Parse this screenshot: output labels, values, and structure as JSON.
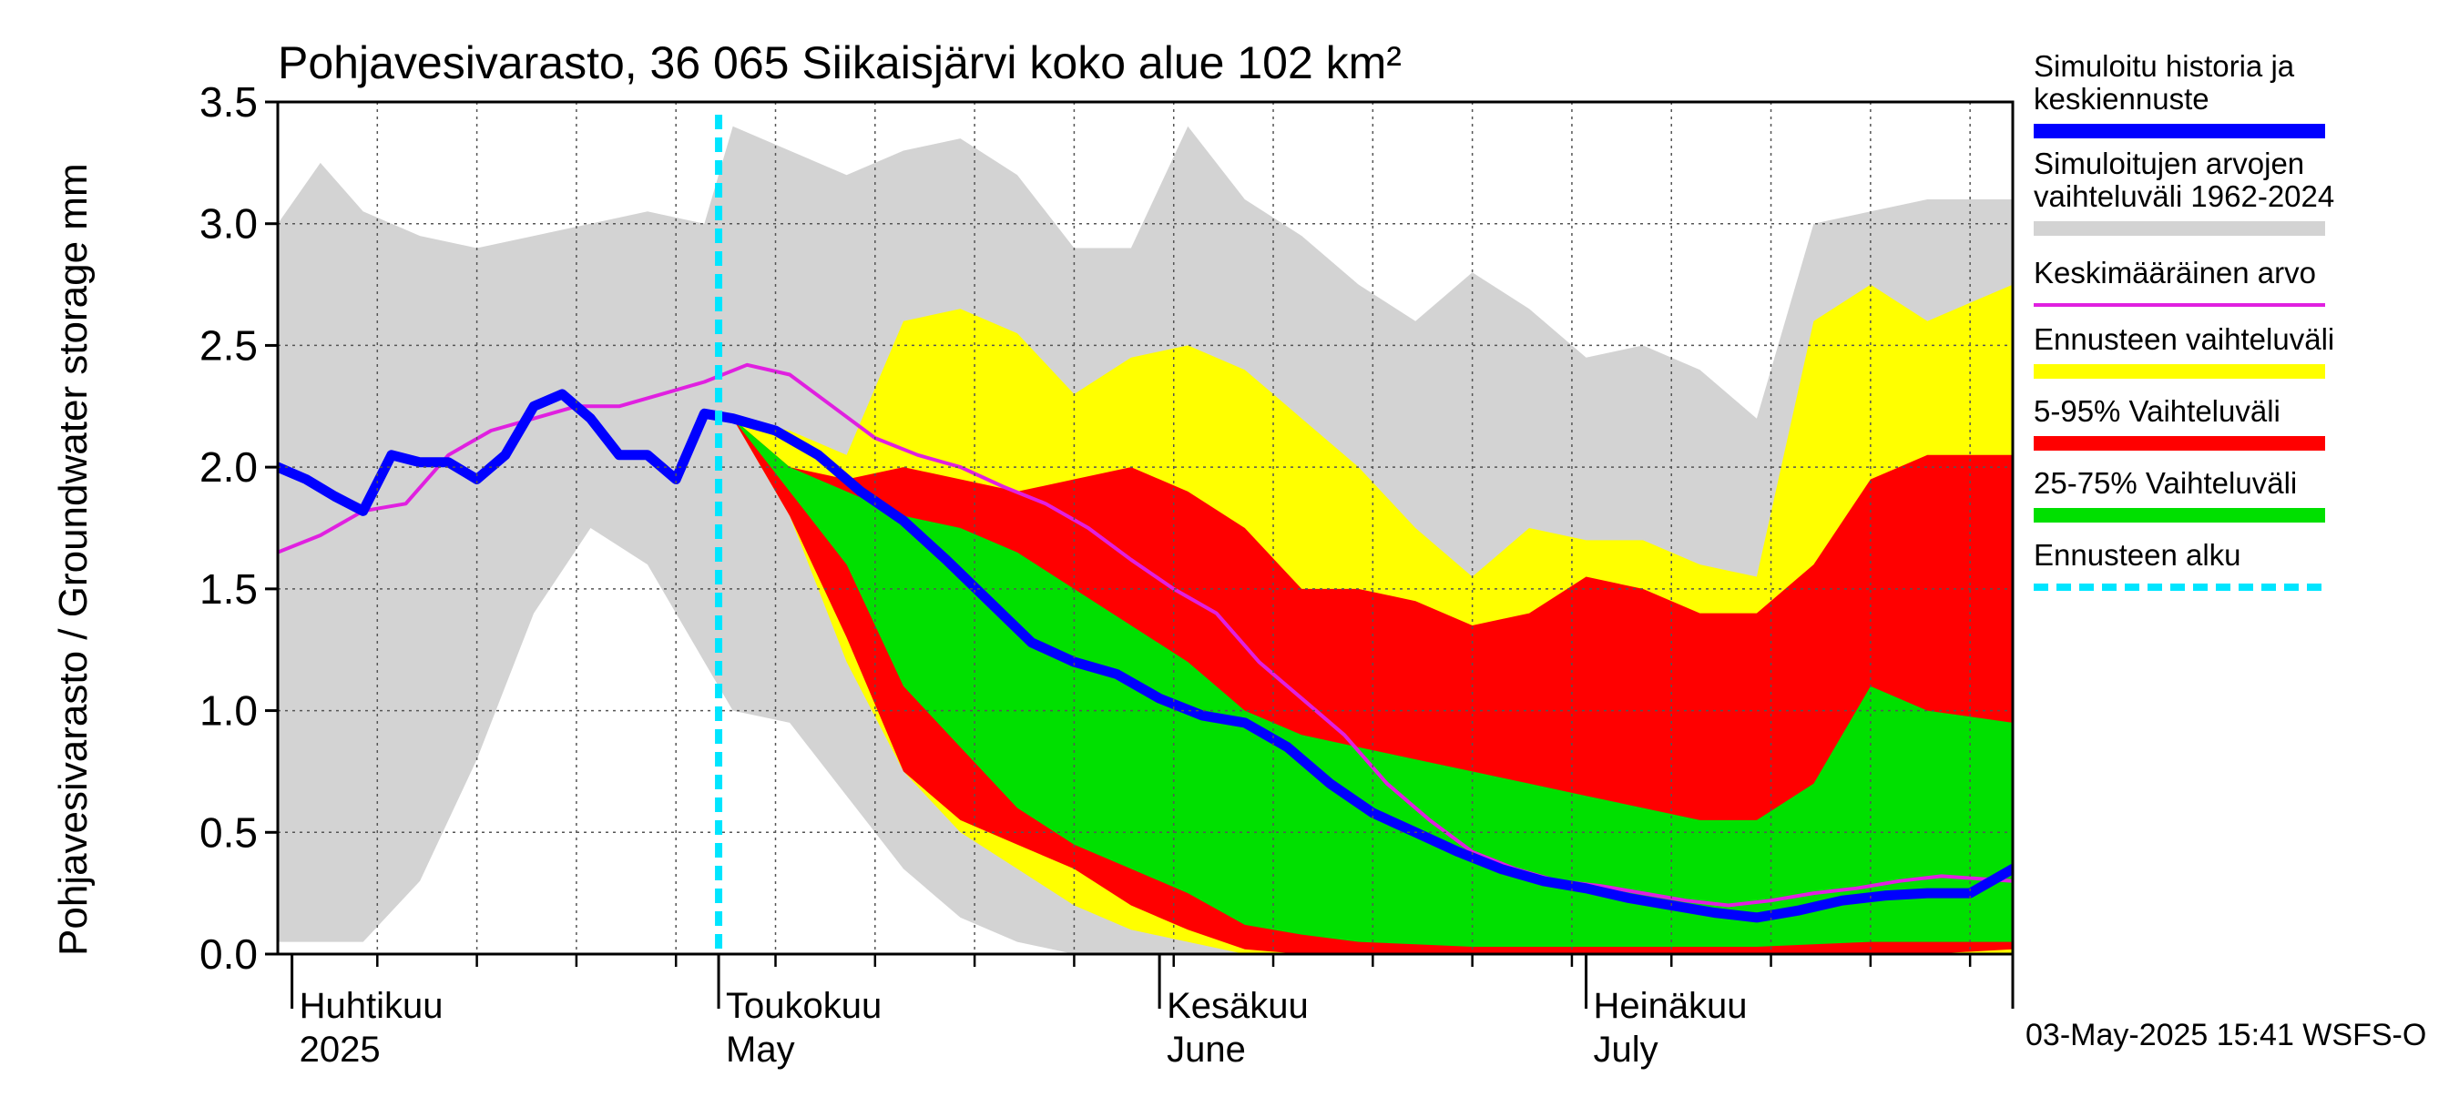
{
  "chart_data": {
    "type": "area",
    "title": "Pohjavesivarasto, 36 065 Siikaisjärvi koko alue 102 km²",
    "ylabel": "Pohjavesivarasto / Groundwater storage   mm",
    "ylim": [
      0,
      3.5
    ],
    "y_ticks": [
      "0.0",
      "0.5",
      "1.0",
      "1.5",
      "2.0",
      "2.5",
      "3.0",
      "3.5"
    ],
    "grid": true,
    "x_start": "2025-03-31",
    "x_end": "2025-07-31",
    "forecast_start": "2025-05-01",
    "month_labels": [
      {
        "fi": "Huhtikuu",
        "en": "2025",
        "date": "2025-04-01"
      },
      {
        "fi": "Toukokuu",
        "en": "May",
        "date": "2025-05-01"
      },
      {
        "fi": "Kesäkuu",
        "en": "June",
        "date": "2025-06-01"
      },
      {
        "fi": "Heinäkuu",
        "en": "July",
        "date": "2025-07-01"
      }
    ],
    "legend": [
      {
        "label": "Simuloitu historia ja keskiennuste",
        "color": "#0000ff",
        "style": "thick-line"
      },
      {
        "label": "Simuloitujen arvojen vaihteluväli 1962-2024",
        "color": "#d3d3d3",
        "style": "band"
      },
      {
        "label": "Keskimääräinen arvo",
        "color": "#e020e0",
        "style": "line"
      },
      {
        "label": "Ennusteen vaihteluväli",
        "color": "#ffff00",
        "style": "band"
      },
      {
        "label": "5-95% Vaihteluväli",
        "color": "#ff0000",
        "style": "band"
      },
      {
        "label": "25-75% Vaihteluväli",
        "color": "#00e000",
        "style": "band"
      },
      {
        "label": "Ennusteen alku",
        "color": "#00e5ff",
        "style": "dashed-line"
      }
    ],
    "series": [
      {
        "name": "Simuloitujen arvojen vaihteluväli 1962-2024",
        "kind": "band",
        "color": "#d3d3d3",
        "x": [
          "2025-03-31",
          "2025-04-03",
          "2025-04-06",
          "2025-04-10",
          "2025-04-14",
          "2025-04-18",
          "2025-04-22",
          "2025-04-26",
          "2025-04-30",
          "2025-05-02",
          "2025-05-06",
          "2025-05-10",
          "2025-05-14",
          "2025-05-18",
          "2025-05-22",
          "2025-05-26",
          "2025-05-30",
          "2025-06-03",
          "2025-06-07",
          "2025-06-11",
          "2025-06-15",
          "2025-06-19",
          "2025-06-23",
          "2025-06-27",
          "2025-07-01",
          "2025-07-05",
          "2025-07-09",
          "2025-07-13",
          "2025-07-17",
          "2025-07-21",
          "2025-07-25",
          "2025-07-31"
        ],
        "high": [
          3.0,
          3.25,
          3.05,
          2.95,
          2.9,
          2.95,
          3.0,
          3.05,
          3.0,
          3.4,
          3.3,
          3.2,
          3.3,
          3.35,
          3.2,
          2.9,
          2.9,
          3.4,
          3.1,
          2.95,
          2.75,
          2.6,
          2.8,
          2.65,
          2.45,
          2.5,
          2.4,
          2.2,
          3.0,
          3.05,
          3.1,
          3.1
        ],
        "low": [
          0.05,
          0.05,
          0.05,
          0.3,
          0.8,
          1.4,
          1.75,
          1.6,
          1.2,
          1.0,
          0.95,
          0.65,
          0.35,
          0.15,
          0.05,
          0.0,
          0.0,
          0.0,
          0.0,
          0.0,
          0.0,
          0.0,
          0.0,
          0.0,
          0.0,
          0.0,
          0.0,
          0.0,
          0.0,
          0.0,
          0.0,
          0.0
        ]
      },
      {
        "name": "Ennusteen vaihteluväli",
        "kind": "band",
        "color": "#ffff00",
        "x": [
          "2025-05-02",
          "2025-05-06",
          "2025-05-10",
          "2025-05-14",
          "2025-05-18",
          "2025-05-22",
          "2025-05-26",
          "2025-05-30",
          "2025-06-03",
          "2025-06-07",
          "2025-06-11",
          "2025-06-15",
          "2025-06-19",
          "2025-06-23",
          "2025-06-27",
          "2025-07-01",
          "2025-07-05",
          "2025-07-09",
          "2025-07-13",
          "2025-07-17",
          "2025-07-21",
          "2025-07-25",
          "2025-07-31"
        ],
        "high": [
          2.2,
          2.15,
          2.05,
          2.6,
          2.65,
          2.55,
          2.3,
          2.45,
          2.5,
          2.4,
          2.2,
          2.0,
          1.75,
          1.55,
          1.75,
          1.7,
          1.7,
          1.6,
          1.55,
          2.6,
          2.75,
          2.6,
          2.75
        ],
        "low": [
          2.2,
          1.8,
          1.2,
          0.75,
          0.5,
          0.35,
          0.2,
          0.1,
          0.05,
          0.0,
          0.0,
          0.0,
          0.0,
          0.0,
          0.0,
          0.0,
          0.0,
          0.0,
          0.0,
          0.0,
          0.0,
          0.0,
          0.0
        ]
      },
      {
        "name": "5-95% Vaihteluväli",
        "kind": "band",
        "color": "#ff0000",
        "x": [
          "2025-05-02",
          "2025-05-06",
          "2025-05-10",
          "2025-05-14",
          "2025-05-18",
          "2025-05-22",
          "2025-05-26",
          "2025-05-30",
          "2025-06-03",
          "2025-06-07",
          "2025-06-11",
          "2025-06-15",
          "2025-06-19",
          "2025-06-23",
          "2025-06-27",
          "2025-07-01",
          "2025-07-05",
          "2025-07-09",
          "2025-07-13",
          "2025-07-17",
          "2025-07-21",
          "2025-07-25",
          "2025-07-31"
        ],
        "high": [
          2.2,
          2.0,
          1.95,
          2.0,
          1.95,
          1.9,
          1.95,
          2.0,
          1.9,
          1.75,
          1.5,
          1.5,
          1.45,
          1.35,
          1.4,
          1.55,
          1.5,
          1.4,
          1.4,
          1.6,
          1.95,
          2.05,
          2.05
        ],
        "low": [
          2.2,
          1.8,
          1.3,
          0.75,
          0.55,
          0.45,
          0.35,
          0.2,
          0.1,
          0.02,
          0.0,
          0.0,
          0.0,
          0.0,
          0.0,
          0.0,
          0.0,
          0.0,
          0.0,
          0.0,
          0.0,
          0.0,
          0.02
        ]
      },
      {
        "name": "25-75% Vaihteluväli",
        "kind": "band",
        "color": "#00e000",
        "x": [
          "2025-05-02",
          "2025-05-06",
          "2025-05-10",
          "2025-05-14",
          "2025-05-18",
          "2025-05-22",
          "2025-05-26",
          "2025-05-30",
          "2025-06-03",
          "2025-06-07",
          "2025-06-11",
          "2025-06-15",
          "2025-06-19",
          "2025-06-23",
          "2025-06-27",
          "2025-07-01",
          "2025-07-05",
          "2025-07-09",
          "2025-07-13",
          "2025-07-17",
          "2025-07-21",
          "2025-07-25",
          "2025-07-31"
        ],
        "high": [
          2.2,
          2.0,
          1.9,
          1.8,
          1.75,
          1.65,
          1.5,
          1.35,
          1.2,
          1.0,
          0.9,
          0.85,
          0.8,
          0.75,
          0.7,
          0.65,
          0.6,
          0.55,
          0.55,
          0.7,
          1.1,
          1.0,
          0.95
        ],
        "low": [
          2.2,
          1.9,
          1.6,
          1.1,
          0.85,
          0.6,
          0.45,
          0.35,
          0.25,
          0.12,
          0.08,
          0.05,
          0.04,
          0.03,
          0.03,
          0.03,
          0.03,
          0.03,
          0.03,
          0.04,
          0.05,
          0.05,
          0.05
        ]
      },
      {
        "name": "Keskimääräinen arvo",
        "kind": "line",
        "color": "#e020e0",
        "x": [
          "2025-03-31",
          "2025-04-03",
          "2025-04-06",
          "2025-04-09",
          "2025-04-12",
          "2025-04-15",
          "2025-04-18",
          "2025-04-21",
          "2025-04-24",
          "2025-04-27",
          "2025-04-30",
          "2025-05-03",
          "2025-05-06",
          "2025-05-09",
          "2025-05-12",
          "2025-05-15",
          "2025-05-18",
          "2025-05-21",
          "2025-05-24",
          "2025-05-27",
          "2025-05-30",
          "2025-06-02",
          "2025-06-05",
          "2025-06-08",
          "2025-06-11",
          "2025-06-14",
          "2025-06-17",
          "2025-06-20",
          "2025-06-23",
          "2025-06-26",
          "2025-06-29",
          "2025-07-02",
          "2025-07-05",
          "2025-07-08",
          "2025-07-11",
          "2025-07-14",
          "2025-07-17",
          "2025-07-20",
          "2025-07-23",
          "2025-07-26",
          "2025-07-31"
        ],
        "values": [
          1.65,
          1.72,
          1.82,
          1.85,
          2.05,
          2.15,
          2.2,
          2.25,
          2.25,
          2.3,
          2.35,
          2.42,
          2.38,
          2.25,
          2.12,
          2.05,
          2.0,
          1.92,
          1.85,
          1.75,
          1.62,
          1.5,
          1.4,
          1.2,
          1.05,
          0.9,
          0.7,
          0.55,
          0.42,
          0.35,
          0.3,
          0.28,
          0.25,
          0.22,
          0.2,
          0.22,
          0.25,
          0.27,
          0.3,
          0.32,
          0.3
        ]
      },
      {
        "name": "Simuloitu historia ja keskiennuste",
        "kind": "line",
        "color": "#0000ff",
        "x": [
          "2025-03-31",
          "2025-04-02",
          "2025-04-04",
          "2025-04-06",
          "2025-04-08",
          "2025-04-10",
          "2025-04-12",
          "2025-04-14",
          "2025-04-16",
          "2025-04-18",
          "2025-04-20",
          "2025-04-22",
          "2025-04-24",
          "2025-04-26",
          "2025-04-28",
          "2025-04-30",
          "2025-05-02",
          "2025-05-05",
          "2025-05-08",
          "2025-05-11",
          "2025-05-14",
          "2025-05-17",
          "2025-05-20",
          "2025-05-23",
          "2025-05-26",
          "2025-05-29",
          "2025-06-01",
          "2025-06-04",
          "2025-06-07",
          "2025-06-10",
          "2025-06-13",
          "2025-06-16",
          "2025-06-19",
          "2025-06-22",
          "2025-06-25",
          "2025-06-28",
          "2025-07-01",
          "2025-07-04",
          "2025-07-07",
          "2025-07-10",
          "2025-07-13",
          "2025-07-16",
          "2025-07-19",
          "2025-07-22",
          "2025-07-25",
          "2025-07-28",
          "2025-07-31"
        ],
        "values": [
          2.0,
          1.95,
          1.88,
          1.82,
          2.05,
          2.02,
          2.02,
          1.95,
          2.05,
          2.25,
          2.3,
          2.2,
          2.05,
          2.05,
          1.95,
          2.22,
          2.2,
          2.15,
          2.05,
          1.9,
          1.78,
          1.62,
          1.45,
          1.28,
          1.2,
          1.15,
          1.05,
          0.98,
          0.95,
          0.85,
          0.7,
          0.58,
          0.5,
          0.42,
          0.35,
          0.3,
          0.27,
          0.23,
          0.2,
          0.17,
          0.15,
          0.18,
          0.22,
          0.24,
          0.25,
          0.25,
          0.35
        ]
      }
    ]
  },
  "footer": {
    "timestamp": "03-May-2025 15:41 WSFS-O"
  }
}
